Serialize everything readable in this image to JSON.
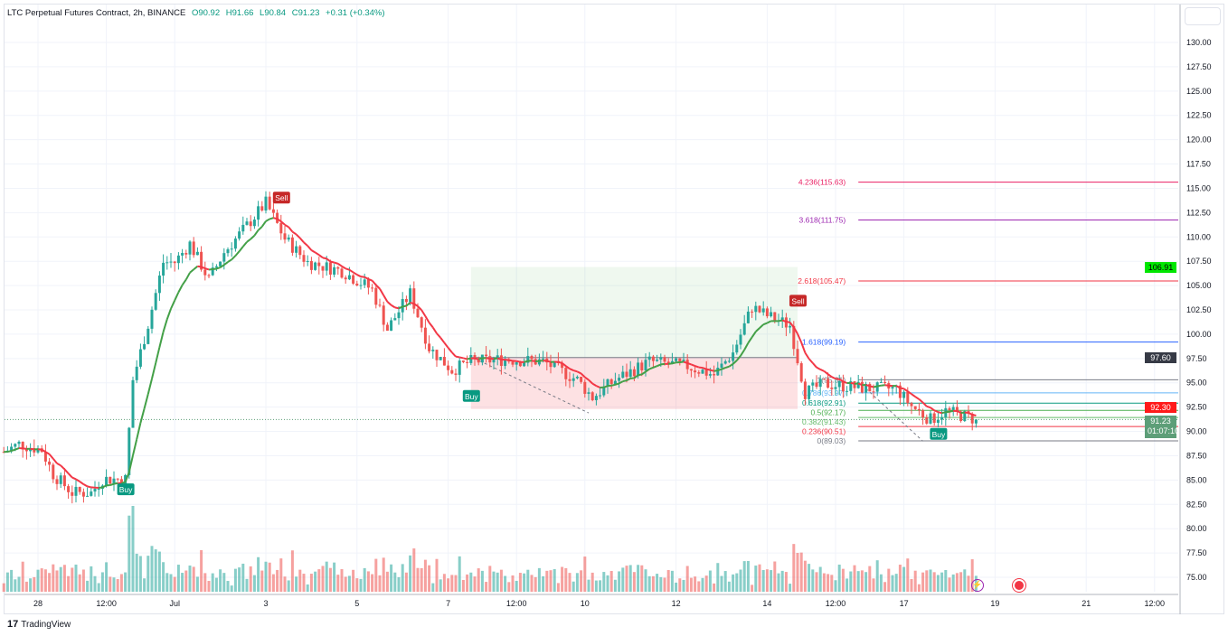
{
  "header": {
    "symbol": "LTC Perpetual Futures Contract, 2h, BINANCE",
    "open": "O90.92",
    "high": "H91.66",
    "low": "L90.84",
    "close": "C91.23",
    "change": "+0.31 (+0.34%)"
  },
  "footer": {
    "brand": "TradingView"
  },
  "colors": {
    "up": "#26a69a",
    "down": "#ef5350",
    "ma_up": "#43a047",
    "ma_down": "#f23645",
    "grid": "#f0f3fa"
  },
  "price_labels": {
    "target": {
      "text": "106.91",
      "color": "#00e600"
    },
    "entry": {
      "text": "97.60",
      "color": "#363a45"
    },
    "stop": {
      "text": "92.30",
      "color": "#ff1a1a"
    },
    "last": {
      "text": "91.23",
      "countdown": "01:07:10",
      "color": "#5d9e78"
    }
  },
  "chart_data": {
    "type": "candlestick",
    "y_ticks": [
      "130.00",
      "127.50",
      "125.00",
      "122.50",
      "120.00",
      "117.50",
      "115.00",
      "112.50",
      "110.00",
      "107.50",
      "105.00",
      "102.50",
      "100.00",
      "97.50",
      "95.00",
      "92.50",
      "90.00",
      "87.50",
      "85.00",
      "82.50",
      "80.00",
      "77.50",
      "75.00"
    ],
    "ylim": [
      75,
      130
    ],
    "x_ticks": [
      {
        "label": "28",
        "t": "06-28 00:00"
      },
      {
        "label": "12:00",
        "t": "06-29 12:00"
      },
      {
        "label": "Jul",
        "t": "07-01 00:00"
      },
      {
        "label": "3",
        "t": "07-03 00:00"
      },
      {
        "label": "5",
        "t": "07-05 00:00"
      },
      {
        "label": "7",
        "t": "07-07 00:00"
      },
      {
        "label": "12:00",
        "t": "07-08 12:00"
      },
      {
        "label": "10",
        "t": "07-10 00:00"
      },
      {
        "label": "12",
        "t": "07-12 00:00"
      },
      {
        "label": "14",
        "t": "07-14 00:00"
      },
      {
        "label": "12:00",
        "t": "07-15 12:00"
      },
      {
        "label": "17",
        "t": "07-17 00:00"
      },
      {
        "label": "19",
        "t": "07-19 00:00"
      },
      {
        "label": "21",
        "t": "07-21 00:00"
      },
      {
        "label": "12:00",
        "t": "07-22 12:00"
      }
    ],
    "price_path": [
      [
        "06-27 06:00",
        87.9
      ],
      [
        "06-27 14:00",
        88.7
      ],
      [
        "06-28 02:00",
        88.1
      ],
      [
        "06-28 08:00",
        85.6
      ],
      [
        "06-28 18:00",
        83.7
      ],
      [
        "06-29 04:00",
        83.7
      ],
      [
        "06-29 10:00",
        85.1
      ],
      [
        "06-29 22:00",
        85.1
      ],
      [
        "06-30 02:00",
        95.3
      ],
      [
        "06-30 10:00",
        101
      ],
      [
        "06-30 18:00",
        107.4
      ],
      [
        "07-01 00:00",
        107.4
      ],
      [
        "07-01 08:00",
        109.3
      ],
      [
        "07-01 18:00",
        105.6
      ],
      [
        "07-02 02:00",
        108.4
      ],
      [
        "07-02 12:00",
        110.7
      ],
      [
        "07-03 00:00",
        113.5
      ],
      [
        "07-03 10:00",
        109.8
      ],
      [
        "07-03 22:00",
        107.4
      ],
      [
        "07-04 16:00",
        106.5
      ],
      [
        "07-05 08:00",
        104.6
      ],
      [
        "07-05 16:00",
        100.5
      ],
      [
        "07-06 04:00",
        104.2
      ],
      [
        "07-06 14:00",
        98.6
      ],
      [
        "07-07 02:00",
        96.3
      ],
      [
        "07-07 12:00",
        97.2
      ],
      [
        "07-08 06:00",
        97.4
      ],
      [
        "07-09 02:00",
        97.2
      ],
      [
        "07-09 20:00",
        95.3
      ],
      [
        "07-10 04:00",
        93.5
      ],
      [
        "07-10 16:00",
        95.3
      ],
      [
        "07-11 10:00",
        97.2
      ],
      [
        "07-12 06:00",
        96.7
      ],
      [
        "07-12 20:00",
        95.8
      ],
      [
        "07-13 06:00",
        98.1
      ],
      [
        "07-13 16:00",
        102.8
      ],
      [
        "07-14 00:00",
        101.9
      ],
      [
        "07-14 12:00",
        100.9
      ],
      [
        "07-14 20:00",
        94.0
      ],
      [
        "07-15 06:00",
        94.9
      ],
      [
        "07-16 06:00",
        94.4
      ],
      [
        "07-16 20:00",
        94.4
      ],
      [
        "07-17 04:00",
        92.6
      ],
      [
        "07-17 14:00",
        91.2
      ],
      [
        "07-17 22:00",
        92.1
      ],
      [
        "07-18 14:00",
        91.23
      ]
    ],
    "signals": [
      {
        "label": "Buy",
        "t": "06-29 22:00",
        "price": 84.0,
        "color": "#089981"
      },
      {
        "label": "Sell",
        "t": "07-03 08:00",
        "price": 114.0,
        "color": "#c62828"
      },
      {
        "label": "Buy",
        "t": "07-07 12:00",
        "price": 93.6,
        "color": "#089981"
      },
      {
        "label": "Sell",
        "t": "07-14 16:00",
        "price": 103.4,
        "color": "#c62828"
      },
      {
        "label": "Buy",
        "t": "07-17 18:00",
        "price": 89.7,
        "color": "#089981"
      }
    ],
    "position": {
      "type": "long",
      "start": "07-07 12:00",
      "end": "07-14 16:00",
      "entry": 97.6,
      "target": 106.91,
      "stop": 92.3
    },
    "fib_levels": [
      {
        "label": "4.236(115.63)",
        "level": 115.63,
        "color": "#e91e63"
      },
      {
        "label": "3.618(111.75)",
        "level": 111.75,
        "color": "#9c27b0"
      },
      {
        "label": "2.618(105.47)",
        "level": 105.47,
        "color": "#f23645"
      },
      {
        "label": "1.618(99.19)",
        "level": 99.19,
        "color": "#2962ff"
      },
      {
        "label": "1(95.31)",
        "level": 95.31,
        "color": "#787b86"
      },
      {
        "label": "0.786(93.97)",
        "level": 93.97,
        "color": "#64b5f6"
      },
      {
        "label": "0.618(92.91)",
        "level": 92.91,
        "color": "#089981"
      },
      {
        "label": "0.5(92.17)",
        "level": 92.17,
        "color": "#4caf50"
      },
      {
        "label": "0.382(91.43)",
        "level": 91.43,
        "color": "#66bb6a"
      },
      {
        "label": "0.236(90.51)",
        "level": 90.51,
        "color": "#f23645"
      },
      {
        "label": "0(89.03)",
        "level": 89.03,
        "color": "#787b86"
      }
    ],
    "fib_start": "07-16 00:00",
    "trendlines": [
      [
        [
          "07-07 14:00",
          97.5
        ],
        [
          "07-10 02:00",
          91.9
        ]
      ],
      [
        [
          "07-16 04:00",
          94.4
        ],
        [
          "07-17 10:00",
          89.0
        ]
      ]
    ]
  }
}
